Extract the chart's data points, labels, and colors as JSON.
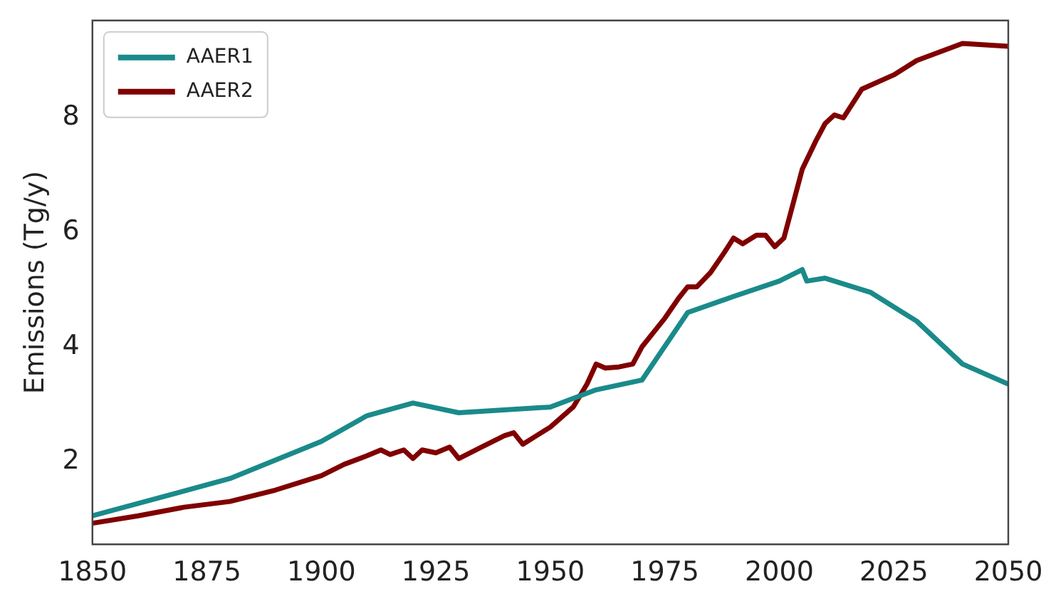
{
  "chart_data": {
    "type": "line",
    "ylabel": "Emissions (Tg/y)",
    "xlim": [
      1850,
      2050
    ],
    "xticks": [
      1850,
      1875,
      1900,
      1925,
      1950,
      1975,
      2000,
      2025,
      2050
    ],
    "ylim": [
      0.55,
      9.7
    ],
    "yticks": [
      2,
      4,
      6,
      8
    ],
    "grid": false,
    "legend": "top left",
    "marker": "none",
    "line_style": "solid",
    "series": [
      {
        "name": "AAER1",
        "color": "#1a8a8a",
        "x": [
          1850,
          1880,
          1900,
          1910,
          1920,
          1930,
          1950,
          1960,
          1970,
          1980,
          1990,
          2000,
          2005,
          2006,
          2010,
          2020,
          2030,
          2040,
          2050
        ],
        "values": [
          1.05,
          1.7,
          2.35,
          2.8,
          3.02,
          2.85,
          2.95,
          3.25,
          3.42,
          4.6,
          4.88,
          5.15,
          5.35,
          5.15,
          5.2,
          4.95,
          4.45,
          3.7,
          3.35
        ]
      },
      {
        "name": "AAER2",
        "color": "#800000",
        "x": [
          1850,
          1860,
          1870,
          1880,
          1890,
          1900,
          1905,
          1910,
          1913,
          1915,
          1918,
          1920,
          1922,
          1925,
          1928,
          1930,
          1935,
          1940,
          1942,
          1944,
          1947,
          1950,
          1955,
          1958,
          1960,
          1962,
          1965,
          1968,
          1970,
          1973,
          1975,
          1978,
          1980,
          1982,
          1985,
          1988,
          1990,
          1992,
          1995,
          1997,
          1999,
          2001,
          2003,
          2005,
          2008,
          2010,
          2012,
          2014,
          2018,
          2025,
          2030,
          2040,
          2050
        ],
        "values": [
          0.92,
          1.05,
          1.2,
          1.3,
          1.5,
          1.75,
          1.95,
          2.1,
          2.2,
          2.12,
          2.2,
          2.05,
          2.2,
          2.15,
          2.25,
          2.05,
          2.25,
          2.45,
          2.5,
          2.3,
          2.45,
          2.6,
          2.95,
          3.35,
          3.7,
          3.63,
          3.65,
          3.7,
          4.0,
          4.3,
          4.5,
          4.85,
          5.05,
          5.05,
          5.3,
          5.65,
          5.9,
          5.8,
          5.95,
          5.95,
          5.75,
          5.9,
          6.5,
          7.1,
          7.6,
          7.9,
          8.05,
          8.0,
          8.5,
          8.75,
          9.0,
          9.3,
          9.25
        ]
      }
    ]
  }
}
